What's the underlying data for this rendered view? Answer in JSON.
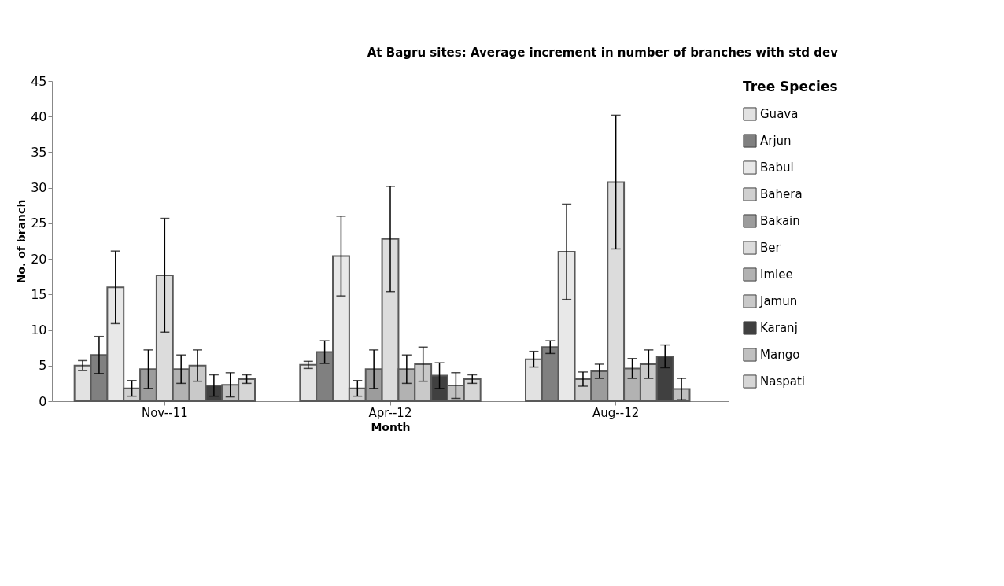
{
  "chart_data": {
    "type": "bar",
    "title": "At Bagru sites: Average increment in number of branches with  std dev",
    "xlabel": "Month",
    "ylabel": "No. of branch",
    "legend_title": "Tree Species",
    "categories": [
      "Nov--11",
      "Apr--12",
      "Aug--12"
    ],
    "series": [
      {
        "name": "Guava",
        "color": "#e2e2e2",
        "values": [
          5,
          5.1,
          5.9
        ],
        "errors": [
          0.7,
          0.5,
          1.1
        ]
      },
      {
        "name": "Arjun",
        "color": "#808080",
        "values": [
          6.5,
          6.9,
          7.6
        ],
        "errors": [
          2.6,
          1.6,
          0.9
        ]
      },
      {
        "name": "Babul",
        "color": "#e8e8e8",
        "values": [
          16,
          20.4,
          21
        ],
        "errors": [
          5.1,
          5.6,
          6.7
        ]
      },
      {
        "name": "Bahera",
        "color": "#d0d0d0",
        "values": [
          1.8,
          1.8,
          3.1
        ],
        "errors": [
          1.1,
          1.1,
          1
        ]
      },
      {
        "name": "Bakain",
        "color": "#9c9c9c",
        "values": [
          4.5,
          4.5,
          4.2
        ],
        "errors": [
          2.7,
          2.7,
          1
        ]
      },
      {
        "name": "Ber",
        "color": "#dcdcdc",
        "values": [
          17.7,
          22.8,
          30.8
        ],
        "errors": [
          8,
          7.4,
          9.4
        ]
      },
      {
        "name": "Imlee",
        "color": "#b2b2b2",
        "values": [
          4.5,
          4.5,
          4.6
        ],
        "errors": [
          2,
          2,
          1.4
        ]
      },
      {
        "name": "Jamun",
        "color": "#c9c9c9",
        "values": [
          5,
          5.2,
          5.2
        ],
        "errors": [
          2.2,
          2.4,
          2
        ]
      },
      {
        "name": "Karanj",
        "color": "#404040",
        "values": [
          2.2,
          3.6,
          6.3
        ],
        "errors": [
          1.5,
          1.8,
          1.6
        ]
      },
      {
        "name": "Mango",
        "color": "#c0c0c0",
        "values": [
          2.3,
          2.2,
          1.7
        ],
        "errors": [
          1.7,
          1.8,
          1.5
        ]
      },
      {
        "name": "Naspati",
        "color": "#d6d6d6",
        "values": [
          3.1,
          3.1,
          null
        ],
        "errors": [
          0.6,
          0.6,
          null
        ]
      }
    ],
    "ylim": [
      0,
      45
    ],
    "yticks": [
      0,
      5,
      10,
      15,
      20,
      25,
      30,
      35,
      40,
      45
    ],
    "grid": false,
    "legend": "right"
  }
}
